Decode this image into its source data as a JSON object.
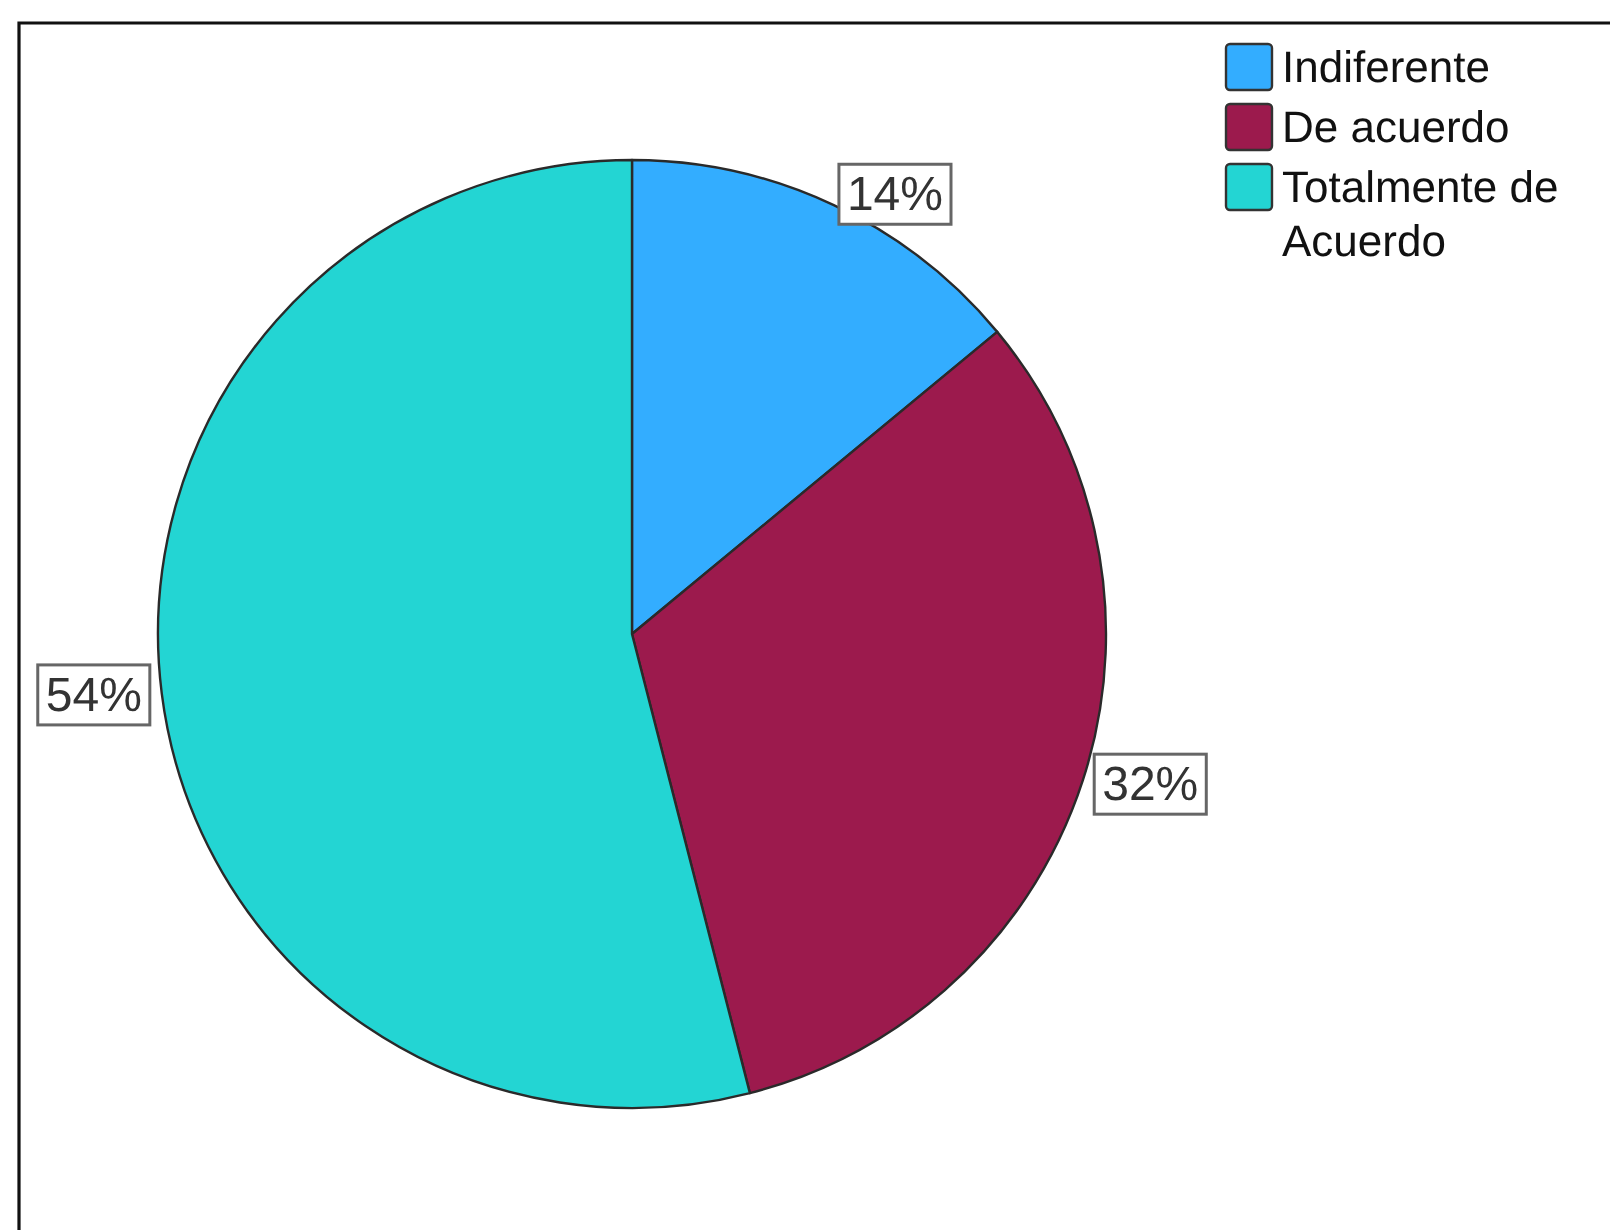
{
  "chart_data": {
    "type": "pie",
    "categories": [
      "Indiferente",
      "De acuerdo",
      "Totalmente de Acuerdo"
    ],
    "values": [
      14,
      32,
      54
    ],
    "colors": [
      "#33adff",
      "#9c1a4d",
      "#23d5d3"
    ],
    "value_labels": [
      "14%",
      "32%",
      "54%"
    ],
    "legend": "top right"
  }
}
